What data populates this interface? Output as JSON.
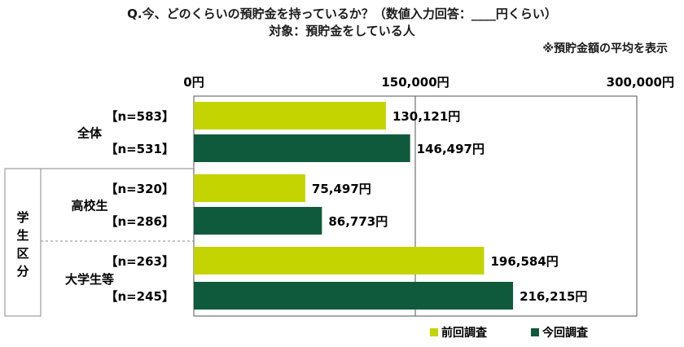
{
  "title": "Q.今、どのくらいの預貯金を持っているか？（数値入力回答：____円くらい）",
  "subtitle": "対象：預貯金をしている人",
  "note": "※預貯金額の平均を表示",
  "colors": {
    "previous": "#c3d400",
    "current": "#0f5a3c",
    "grid": "#555555",
    "divider": "#888888"
  },
  "chart_data": {
    "type": "bar",
    "orientation": "horizontal",
    "x_ticks": [
      "0円",
      "150,000円",
      "300,000円"
    ],
    "xlim": [
      0,
      300000
    ],
    "side_label": "学生区分",
    "groups": [
      {
        "name": "全体",
        "rows": [
          {
            "series": "前回調査",
            "n_label": "【n=583】",
            "value": 130121,
            "value_label": "130,121円"
          },
          {
            "series": "今回調査",
            "n_label": "【n=531】",
            "value": 146497,
            "value_label": "146,497円"
          }
        ]
      },
      {
        "name": "高校生",
        "rows": [
          {
            "series": "前回調査",
            "n_label": "【n=320】",
            "value": 75497,
            "value_label": "75,497円"
          },
          {
            "series": "今回調査",
            "n_label": "【n=286】",
            "value": 86773,
            "value_label": "86,773円"
          }
        ]
      },
      {
        "name": "大学生等",
        "rows": [
          {
            "series": "前回調査",
            "n_label": "【n=263】",
            "value": 196584,
            "value_label": "196,584円"
          },
          {
            "series": "今回調査",
            "n_label": "【n=245】",
            "value": 216215,
            "value_label": "216,215円"
          }
        ]
      }
    ],
    "series": [
      {
        "name": "前回調査"
      },
      {
        "name": "今回調査"
      }
    ],
    "legend": "bottom-right"
  }
}
